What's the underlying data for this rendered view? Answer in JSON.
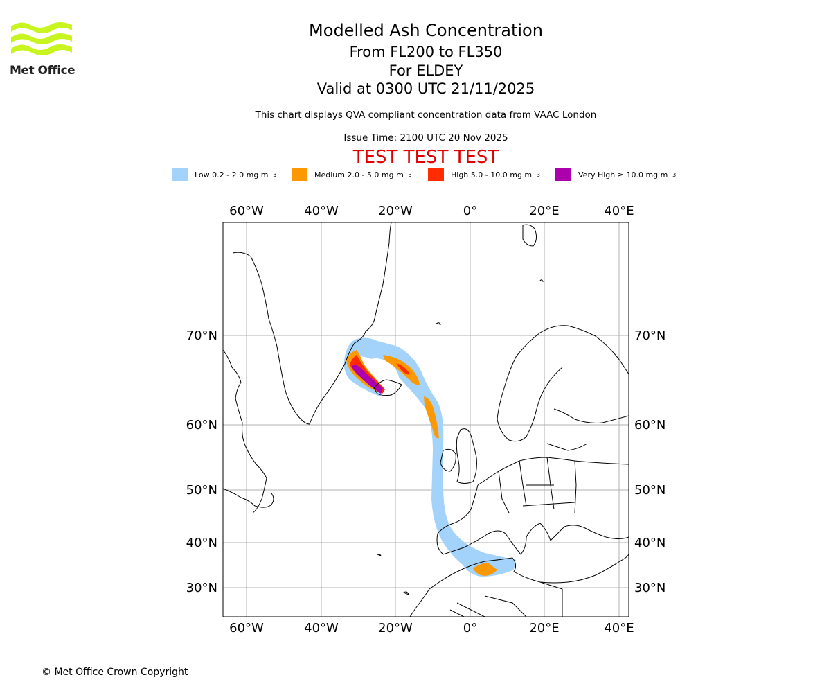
{
  "header": {
    "logo_text": "Met Office",
    "title": "Modelled Ash Concentration",
    "level_range": "From FL200 to FL350",
    "target": "For ELDEY",
    "valid_time": "Valid at 0300 UTC 21/11/2025",
    "description": "This chart displays QVA compliant concentration data from VAAC London",
    "issue_time": "Issue Time: 2100 UTC 20 Nov 2025",
    "test_banner": "TEST TEST TEST"
  },
  "legend": {
    "items": [
      {
        "label": "Low 0.2 - 2.0 mg m",
        "unit_exp": "−3",
        "color": "#a3d3fa"
      },
      {
        "label": "Medium 2.0 - 5.0 mg m",
        "unit_exp": "−3",
        "color": "#fd9900"
      },
      {
        "label": "High 5.0 - 10.0 mg m",
        "unit_exp": "−3",
        "color": "#fe2c00"
      },
      {
        "label": "Very High  ≥  10.0 mg m",
        "unit_exp": "−3",
        "color": "#ac00ac"
      }
    ]
  },
  "map": {
    "lon_labels": [
      "60°W",
      "40°W",
      "20°W",
      "0°",
      "20°E",
      "40°E"
    ],
    "lat_labels": [
      "70°N",
      "60°N",
      "50°N",
      "40°N",
      "30°N"
    ],
    "colors": {
      "grid": "#b0b0b0",
      "coast": "#000000",
      "low": "#a3d3fa",
      "medium": "#fd9900",
      "high": "#fe2c00",
      "very_high": "#ac00ac"
    }
  },
  "footer": {
    "copyright": "© Met Office Crown Copyright"
  }
}
